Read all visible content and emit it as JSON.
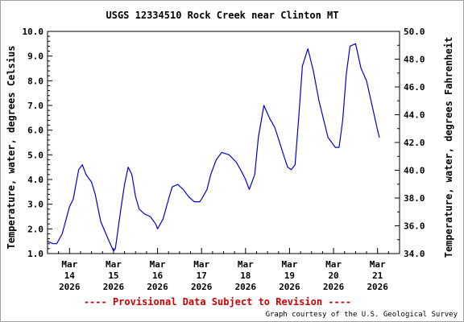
{
  "chart_data": {
    "type": "line",
    "title": "USGS 12334510 Rock Creek near Clinton MT",
    "ylabel": "Temperature, water, degrees Celsius",
    "ylabel_right": "Temperature, water, degrees Fahrenheit",
    "ylim": [
      1.0,
      10.0
    ],
    "ylim_right": [
      34.0,
      50.0
    ],
    "xlim": [
      "2026-03-13T12:00",
      "2026-03-21T12:00"
    ],
    "y_ticks": [
      "1.0",
      "2.0",
      "3.0",
      "4.0",
      "5.0",
      "6.0",
      "7.0",
      "8.0",
      "9.0",
      "10.0"
    ],
    "y_ticks_right": [
      "34.0",
      "36.0",
      "38.0",
      "40.0",
      "42.0",
      "44.0",
      "46.0",
      "48.0",
      "50.0"
    ],
    "x_ticks": [
      {
        "x": "2026-03-14",
        "month": "Mar",
        "day": "14",
        "year": "2026"
      },
      {
        "x": "2026-03-15",
        "month": "Mar",
        "day": "15",
        "year": "2026"
      },
      {
        "x": "2026-03-16",
        "month": "Mar",
        "day": "16",
        "year": "2026"
      },
      {
        "x": "2026-03-17",
        "month": "Mar",
        "day": "17",
        "year": "2026"
      },
      {
        "x": "2026-03-18",
        "month": "Mar",
        "day": "18",
        "year": "2026"
      },
      {
        "x": "2026-03-19",
        "month": "Mar",
        "day": "19",
        "year": "2026"
      },
      {
        "x": "2026-03-20",
        "month": "Mar",
        "day": "20",
        "year": "2026"
      },
      {
        "x": "2026-03-21",
        "month": "Mar",
        "day": "21",
        "year": "2026"
      }
    ],
    "grid": false,
    "legend": "none",
    "series": [
      {
        "color": "#0000cc",
        "x": [
          "2026-03-13T12:00",
          "2026-03-13T15:00",
          "2026-03-13T17:00",
          "2026-03-13T20:00",
          "2026-03-14T00:00",
          "2026-03-14T02:00",
          "2026-03-14T05:00",
          "2026-03-14T07:00",
          "2026-03-14T09:00",
          "2026-03-14T12:00",
          "2026-03-14T14:00",
          "2026-03-14T17:00",
          "2026-03-14T21:00",
          "2026-03-15T00:00",
          "2026-03-15T01:00",
          "2026-03-15T04:00",
          "2026-03-15T06:00",
          "2026-03-15T08:00",
          "2026-03-15T10:00",
          "2026-03-15T12:00",
          "2026-03-15T14:00",
          "2026-03-15T17:00",
          "2026-03-15T20:00",
          "2026-03-15T23:00",
          "2026-03-16T00:00",
          "2026-03-16T03:00",
          "2026-03-16T06:00",
          "2026-03-16T08:00",
          "2026-03-16T11:00",
          "2026-03-16T14:00",
          "2026-03-16T17:00",
          "2026-03-16T20:00",
          "2026-03-16T23:00",
          "2026-03-17T00:00",
          "2026-03-17T03:00",
          "2026-03-17T05:00",
          "2026-03-17T08:00",
          "2026-03-17T11:00",
          "2026-03-17T15:00",
          "2026-03-17T19:00",
          "2026-03-17T22:00",
          "2026-03-18T00:00",
          "2026-03-18T02:00",
          "2026-03-18T05:00",
          "2026-03-18T07:00",
          "2026-03-18T10:00",
          "2026-03-18T13:00",
          "2026-03-18T16:00",
          "2026-03-18T19:00",
          "2026-03-18T22:00",
          "2026-03-18T23:00",
          "2026-03-19T01:00",
          "2026-03-19T03:00",
          "2026-03-19T05:00",
          "2026-03-19T07:00",
          "2026-03-19T10:00",
          "2026-03-19T13:00",
          "2026-03-19T16:00",
          "2026-03-19T19:00",
          "2026-03-19T21:00",
          "2026-03-19T23:00",
          "2026-03-20T01:00",
          "2026-03-20T03:00",
          "2026-03-20T05:00",
          "2026-03-20T07:00",
          "2026-03-20T09:00",
          "2026-03-20T12:00",
          "2026-03-20T15:00",
          "2026-03-20T18:00",
          "2026-03-20T21:00",
          "2026-03-21T00:00",
          "2026-03-21T01:00"
        ],
        "y": [
          1.5,
          1.4,
          1.4,
          1.8,
          2.9,
          3.2,
          4.4,
          4.6,
          4.2,
          3.9,
          3.4,
          2.3,
          1.6,
          1.1,
          1.2,
          2.8,
          3.8,
          4.5,
          4.2,
          3.3,
          2.8,
          2.6,
          2.5,
          2.2,
          2.0,
          2.4,
          3.2,
          3.7,
          3.8,
          3.6,
          3.3,
          3.1,
          3.1,
          3.2,
          3.6,
          4.2,
          4.8,
          5.1,
          5.0,
          4.7,
          4.3,
          4.0,
          3.6,
          4.2,
          5.7,
          7.0,
          6.5,
          6.1,
          5.4,
          4.7,
          4.5,
          4.4,
          4.6,
          6.5,
          8.6,
          9.3,
          8.4,
          7.2,
          6.3,
          5.7,
          5.5,
          5.3,
          5.3,
          6.4,
          8.3,
          9.4,
          9.5,
          8.5,
          8.0,
          7.0,
          6.0,
          5.7
        ]
      }
    ]
  },
  "footer": {
    "provisional": "---- Provisional Data Subject to Revision ----",
    "courtesy": "Graph courtesy of the U.S. Geological Survey"
  }
}
